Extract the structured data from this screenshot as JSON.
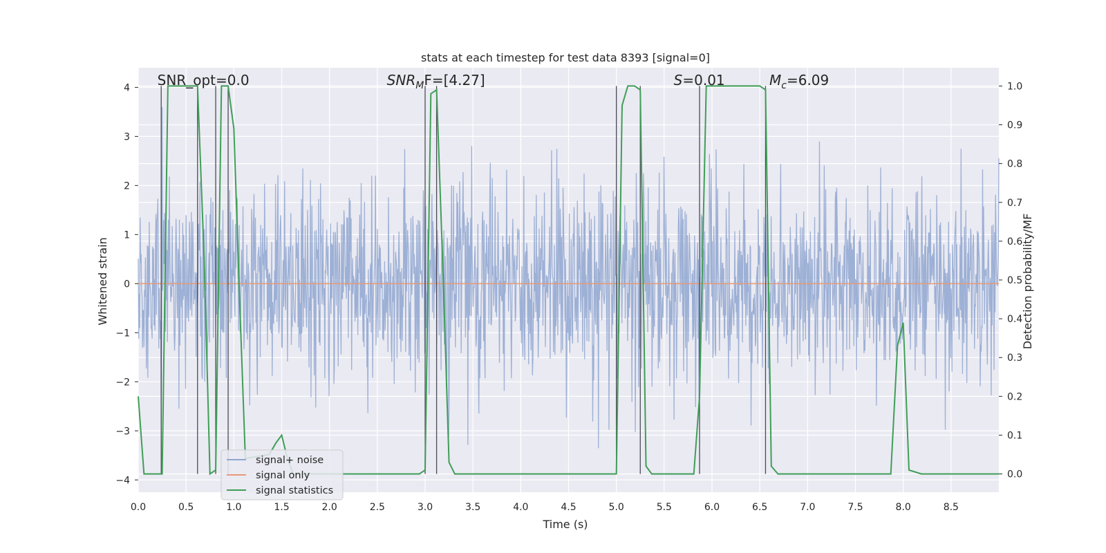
{
  "chart_data": {
    "type": "line",
    "title": "stats at each timestep for test data 8393 [signal=0]",
    "xlabel": "Time (s)",
    "ylabel_left": "Whitened strain",
    "ylabel_right": "Detection probability/MF",
    "xlim": [
      0,
      9.0
    ],
    "ylim_left": [
      -4.25,
      4.4
    ],
    "ylim_right": [
      -0.047,
      1.047
    ],
    "x_ticks": [
      0.0,
      0.5,
      1.0,
      1.5,
      2.0,
      2.5,
      3.0,
      3.5,
      4.0,
      4.5,
      5.0,
      5.5,
      6.0,
      6.5,
      7.0,
      7.5,
      8.0,
      8.5
    ],
    "x_tick_labels": [
      "0.0",
      "0.5",
      "1.0",
      "1.5",
      "2.0",
      "2.5",
      "3.0",
      "3.5",
      "4.0",
      "4.5",
      "5.0",
      "5.5",
      "6.0",
      "6.5",
      "7.0",
      "7.5",
      "8.0",
      "8.5"
    ],
    "y_left_ticks": [
      4,
      3,
      2,
      1,
      0,
      -1,
      -2,
      -3,
      -4
    ],
    "y_left_tick_labels": [
      "4",
      "3",
      "2",
      "1",
      "0",
      "−1",
      "−2",
      "−3",
      "−4"
    ],
    "y_right_ticks": [
      1.0,
      0.9,
      0.8,
      0.7,
      0.6,
      0.5,
      0.4,
      0.3,
      0.2,
      0.1,
      0.0
    ],
    "y_right_tick_labels": [
      "1.0",
      "0.9",
      "0.8",
      "0.7",
      "0.6",
      "0.5",
      "0.4",
      "0.3",
      "0.2",
      "0.1",
      "0.0"
    ],
    "grid": true,
    "legend_position": "lower-left",
    "annotations": [
      {
        "label": "SNR_opt=0.0",
        "x": 0.2,
        "y": 4.05
      },
      {
        "label_parts": [
          "SNR",
          "M",
          "F=[4.27]"
        ],
        "x": 2.6,
        "y": 4.05
      },
      {
        "label_parts": [
          "S",
          "=0.01"
        ],
        "x": 5.6,
        "y": 4.05
      },
      {
        "label_parts": [
          "M",
          "c",
          "=6.09"
        ],
        "x": 6.6,
        "y": 4.05
      }
    ],
    "vertical_markers": [
      0.24,
      0.62,
      0.81,
      0.94,
      3.0,
      3.12,
      5.0,
      5.25,
      5.87,
      6.56
    ],
    "series": [
      {
        "name": "signal+ noise",
        "color": "#8fa6d0",
        "axis": "left",
        "description_values": {
          "noise_std": 1.0,
          "x_start": 0.0,
          "x_end": 9.0,
          "samples": 1800
        }
      },
      {
        "name": "signal only",
        "color": "#e69a75",
        "axis": "left",
        "x": [
          0.0,
          9.0
        ],
        "y": [
          0.0,
          0.0
        ]
      },
      {
        "name": "signal statistics",
        "color": "#3f9e56",
        "axis": "right",
        "x": [
          0.0,
          0.06,
          0.25,
          0.31,
          0.62,
          0.69,
          0.75,
          0.81,
          0.87,
          0.94,
          1.0,
          1.06,
          1.12,
          1.37,
          1.44,
          1.5,
          1.56,
          1.62,
          1.69,
          2.94,
          3.0,
          3.06,
          3.12,
          3.19,
          3.25,
          3.31,
          3.37,
          3.5,
          5.0,
          5.06,
          5.12,
          5.19,
          5.25,
          5.31,
          5.37,
          5.81,
          5.87,
          5.94,
          6.5,
          6.56,
          6.62,
          6.69,
          6.75,
          6.81,
          7.87,
          7.94,
          8.0,
          8.06,
          8.19,
          8.37,
          8.5,
          8.62,
          9.0
        ],
        "y": [
          0.2,
          0.0,
          0.0,
          1.0,
          1.0,
          0.55,
          0.0,
          0.01,
          1.0,
          1.0,
          0.89,
          0.45,
          0.04,
          0.05,
          0.08,
          0.1,
          0.04,
          0.0,
          0.0,
          0.0,
          0.01,
          0.98,
          0.99,
          0.5,
          0.03,
          0.0,
          0.0,
          0.0,
          0.0,
          0.95,
          1.0,
          1.0,
          0.99,
          0.02,
          0.0,
          0.0,
          0.2,
          1.0,
          1.0,
          0.99,
          0.02,
          0.0,
          0.0,
          0.0,
          0.0,
          0.33,
          0.39,
          0.01,
          0.0,
          0.0,
          0.0,
          0.0,
          0.0
        ]
      }
    ]
  }
}
